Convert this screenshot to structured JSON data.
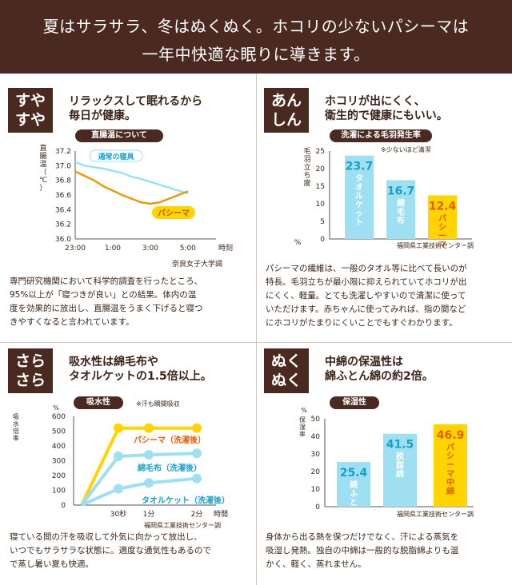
{
  "banner": {
    "line1": "夏はサラサラ、冬はぬくぬく。ホコリの少ないパシーマは",
    "line2": "一年中快適な眠りに導きます。"
  },
  "colors": {
    "brown": "#4a2a20",
    "light_blue": "#9fdff2",
    "orange": "#e89a10",
    "yellow": "#ffd400",
    "gray_line": "#c9d7da"
  },
  "panels": {
    "p1": {
      "badge_l1": "すや",
      "badge_l2": "すや",
      "heading_l1": "リラックスして眠れるから",
      "heading_l2": "毎日が健康。",
      "para": [
        "専門研究機関において科学的調査を行ったところ、",
        "95%以上が「寝つきが良い」との結果。体内の温",
        "度を効果的に放出し、直腸温をうまく下げると寝つ",
        "きやすくなると言われています。"
      ]
    },
    "p2": {
      "badge_l1": "あん",
      "badge_l2": "しん",
      "heading_l1": "ホコリが出にくく、",
      "heading_l2": "衛生的で健康にもいい。",
      "para": [
        "パシーマの繊維は、一般のタオル等に比べて長いのが",
        "特長。毛羽立ちが最小限に抑えられていてホコリが出",
        "にくく、軽量。とても洗濯しやすいので清潔に使って",
        "いただけます。赤ちゃんに使ってみれば、指の間など",
        "にホコリがたまりにくいことでもすぐわかります。"
      ]
    },
    "p3": {
      "badge_l1": "さら",
      "badge_l2": "さら",
      "heading_l1": "吸水性は綿毛布や",
      "heading_l2": "タオルケットの1.5倍以上。",
      "para": [
        "寝ている間の汗を吸収して外気に向かって放出し、",
        "いつでもサラサラな状態に。適度な通気性もあるので",
        "で蒸し暑い夏も快適。"
      ]
    },
    "p4": {
      "badge_l1": "ぬく",
      "badge_l2": "ぬく",
      "heading_l1": "中綿の保温性は",
      "heading_l2": "綿ふとん綿の約2倍。",
      "para": [
        "身体から出る熱を保つだけでなく、汗による蒸気を",
        "吸湿し発熱。独自の中綿は一般的な脱脂綿よりも温",
        "かく、軽く、蒸れません。"
      ]
    }
  },
  "chart_data": [
    {
      "type": "line",
      "pill": "直腸温について",
      "ylabel": "直腸温（℃）",
      "xlabel": "時刻",
      "xticks": [
        "23:00",
        "1:00",
        "3:00",
        "5:00"
      ],
      "yticks": [
        "37.2",
        "37.0",
        "36.8",
        "36.6",
        "36.4",
        "36.2",
        "36.0"
      ],
      "ylim": [
        36.0,
        37.2
      ],
      "xlim": [
        0,
        7.5
      ],
      "source": "奈良女子大学調",
      "series": [
        {
          "name": "通常の寝具",
          "x": [
            0,
            0.5,
            1,
            1.5,
            2,
            2.5,
            3,
            3.5,
            4,
            4.5,
            5,
            5.5,
            6
          ],
          "y": [
            37.05,
            37.0,
            36.98,
            36.96,
            36.93,
            36.9,
            36.85,
            36.82,
            36.78,
            36.74,
            36.7,
            36.66,
            36.62
          ]
        },
        {
          "name": "パシーマ",
          "x": [
            0,
            0.5,
            1,
            1.5,
            2,
            2.5,
            3,
            3.5,
            4,
            4.5,
            5,
            5.5,
            6
          ],
          "y": [
            36.92,
            36.86,
            36.8,
            36.72,
            36.66,
            36.6,
            36.55,
            36.5,
            36.48,
            36.5,
            36.55,
            36.6,
            36.65
          ]
        }
      ]
    },
    {
      "type": "bar",
      "pill": "洗濯による毛羽発生率",
      "note": "※少ないほど清潔",
      "ylabel": "毛羽立ち度",
      "unit": "%",
      "yticks": [
        "25",
        "20",
        "15",
        "10",
        "5",
        "0"
      ],
      "ylim": [
        0,
        25
      ],
      "categories": [
        "タオルケット",
        "綿毛布",
        "パシーマ"
      ],
      "values": [
        23.7,
        16.7,
        12.4
      ],
      "value_labels": [
        "23.7",
        "16.7",
        "12.4"
      ],
      "source": "福岡県工業技術センター調"
    },
    {
      "type": "line",
      "pill": "吸水性",
      "note": "※汗も瞬間吸収",
      "ylabel": "吸水倍率",
      "unit": "%",
      "xticks": [
        "30秒",
        "1分",
        "2分"
      ],
      "xlabel": "時間",
      "yticks": [
        "600",
        "500",
        "400",
        "300",
        "200",
        "100",
        "0"
      ],
      "ylim": [
        0,
        600
      ],
      "source": "福岡県工業技術センター調",
      "series": [
        {
          "name": "パシーマ（洗濯後）",
          "x": [
            0,
            1,
            2,
            3
          ],
          "y": [
            0,
            520,
            520,
            520
          ]
        },
        {
          "name": "綿毛布（洗濯後）",
          "x": [
            0,
            1,
            2,
            3
          ],
          "y": [
            0,
            330,
            340,
            350
          ]
        },
        {
          "name": "タオルケット（洗濯後）",
          "x": [
            0,
            1,
            2,
            3
          ],
          "y": [
            0,
            110,
            150,
            180
          ]
        }
      ]
    },
    {
      "type": "bar",
      "pill": "保湿性",
      "ylabel": "保湿率",
      "unit": "%",
      "yticks": [
        "50",
        "40",
        "30",
        "20",
        "10",
        "0"
      ],
      "ylim": [
        0,
        50
      ],
      "categories": [
        "綿ふとん綿",
        "脱脂綿",
        "パシーマ中綿"
      ],
      "values": [
        25.4,
        41.5,
        46.9
      ],
      "value_labels": [
        "25.4",
        "41.5",
        "46.9"
      ],
      "source": "福岡県工業技術センター調"
    }
  ]
}
